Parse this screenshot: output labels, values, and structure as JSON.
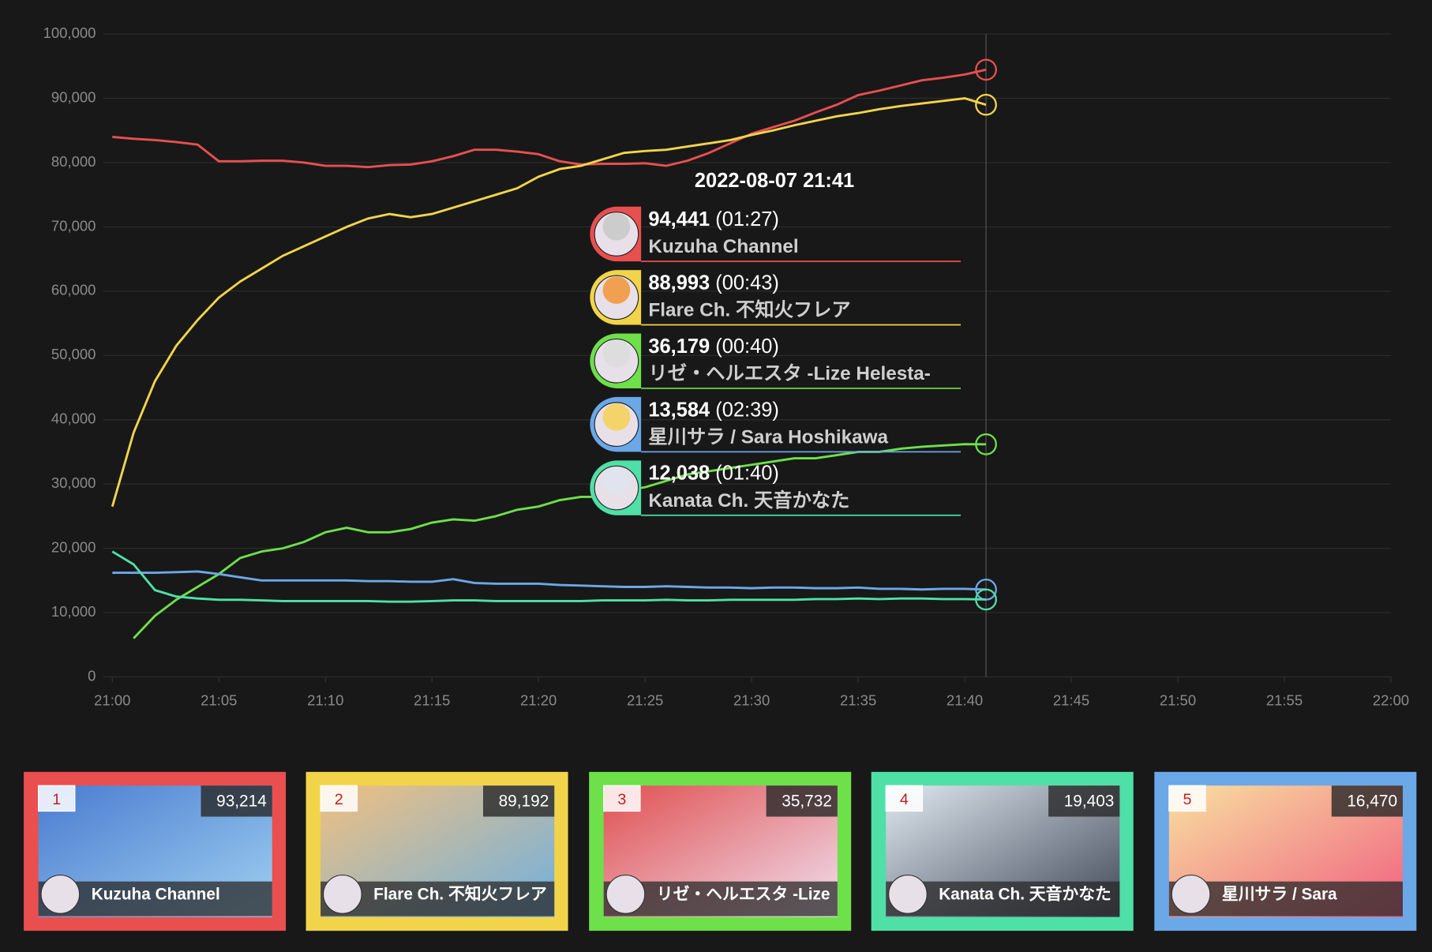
{
  "chart_data": {
    "type": "line",
    "x": [
      "21:00",
      "21:01",
      "21:02",
      "21:03",
      "21:04",
      "21:05",
      "21:06",
      "21:07",
      "21:08",
      "21:09",
      "21:10",
      "21:11",
      "21:12",
      "21:13",
      "21:14",
      "21:15",
      "21:16",
      "21:17",
      "21:18",
      "21:19",
      "21:20",
      "21:21",
      "21:22",
      "21:23",
      "21:24",
      "21:25",
      "21:26",
      "21:27",
      "21:28",
      "21:29",
      "21:30",
      "21:31",
      "21:32",
      "21:33",
      "21:34",
      "21:35",
      "21:36",
      "21:37",
      "21:38",
      "21:39",
      "21:40",
      "21:41"
    ],
    "xlim": [
      "21:00",
      "22:00"
    ],
    "xticks": [
      "21:00",
      "21:05",
      "21:10",
      "21:15",
      "21:20",
      "21:25",
      "21:30",
      "21:35",
      "21:40",
      "21:45",
      "21:50",
      "21:55",
      "22:00"
    ],
    "ylim": [
      0,
      100000
    ],
    "yticks": [
      0,
      {
        "value": 10000,
        "label": "10,000"
      },
      {
        "value": 20000,
        "label": "20,000"
      },
      {
        "value": 30000,
        "label": "30,000"
      },
      {
        "value": 40000,
        "label": "40,000"
      },
      {
        "value": 50000,
        "label": "50,000"
      },
      {
        "value": 60000,
        "label": "60,000"
      },
      {
        "value": 70000,
        "label": "70,000"
      },
      {
        "value": 80000,
        "label": "80,000"
      },
      {
        "value": 90000,
        "label": "90,000"
      },
      {
        "value": 100000,
        "label": "100,000"
      }
    ],
    "grid": true,
    "series": [
      {
        "name": "Kuzuha Channel",
        "color": "#e94f4f",
        "values": [
          84000,
          83700,
          83500,
          83200,
          82800,
          80200,
          80200,
          80300,
          80300,
          80000,
          79500,
          79500,
          79300,
          79600,
          79700,
          80200,
          81000,
          82000,
          82000,
          81700,
          81300,
          80200,
          79700,
          79800,
          79800,
          79900,
          79500,
          80300,
          81500,
          83000,
          84500,
          85500,
          86500,
          87800,
          89000,
          90500,
          91200,
          92000,
          92800,
          93200,
          93700,
          94441
        ]
      },
      {
        "name": "Flare Ch. 不知火フレア",
        "color": "#f2d44a",
        "values": [
          26500,
          38000,
          46000,
          51500,
          55500,
          59000,
          61500,
          63500,
          65500,
          67000,
          68500,
          70000,
          71300,
          72000,
          71500,
          72000,
          73000,
          74000,
          75000,
          76000,
          77800,
          79000,
          79500,
          80500,
          81500,
          81800,
          82000,
          82500,
          83000,
          83500,
          84300,
          85000,
          85800,
          86500,
          87200,
          87700,
          88300,
          88800,
          89200,
          89600,
          90000,
          88993
        ]
      },
      {
        "name": "リゼ・ヘルエスタ -Lize Helesta-",
        "color": "#6de04a",
        "values": [
          null,
          6000,
          9500,
          12000,
          14000,
          16000,
          18500,
          19500,
          20000,
          21000,
          22500,
          23200,
          22500,
          22500,
          23000,
          24000,
          24500,
          24300,
          25000,
          26000,
          26500,
          27500,
          28000,
          28000,
          29000,
          29500,
          30500,
          31500,
          32000,
          32500,
          33000,
          33500,
          34000,
          34000,
          34500,
          35000,
          35000,
          35500,
          35800,
          36000,
          36200,
          36179
        ]
      },
      {
        "name": "星川サラ / Sara Hoshikawa",
        "color": "#6aa8e8",
        "values": [
          16200,
          16200,
          16200,
          16300,
          16400,
          16000,
          15500,
          15000,
          15000,
          15000,
          15000,
          15000,
          14900,
          14900,
          14800,
          14800,
          15200,
          14600,
          14500,
          14500,
          14500,
          14300,
          14200,
          14100,
          14000,
          14000,
          14100,
          14000,
          13900,
          13900,
          13800,
          13900,
          13900,
          13800,
          13800,
          13900,
          13700,
          13700,
          13600,
          13700,
          13700,
          13584
        ]
      },
      {
        "name": "Kanata Ch. 天音かなた",
        "color": "#4fe0a8",
        "values": [
          19500,
          17500,
          13500,
          12500,
          12200,
          12000,
          12000,
          11900,
          11800,
          11800,
          11800,
          11800,
          11800,
          11700,
          11700,
          11800,
          11900,
          11900,
          11800,
          11800,
          11800,
          11800,
          11800,
          11900,
          11900,
          11900,
          12000,
          11900,
          11900,
          12000,
          12000,
          12000,
          12000,
          12100,
          12100,
          12200,
          12100,
          12200,
          12200,
          12100,
          12100,
          12038
        ]
      }
    ]
  },
  "tooltip": {
    "title": "2022-08-07 21:41",
    "items": [
      {
        "value": "94,441",
        "duration": "(01:27)"
      },
      {
        "value": "88,993",
        "duration": "(00:43)"
      },
      {
        "value": "36,179",
        "duration": "(00:40)"
      },
      {
        "value": "13,584",
        "duration": "(02:39)"
      },
      {
        "value": "12,038",
        "duration": "(01:40)"
      }
    ]
  },
  "cards": [
    {
      "rank": "1",
      "viewers": "93,214",
      "name": "Kuzuha Channel"
    },
    {
      "rank": "2",
      "viewers": "89,192",
      "name": "Flare Ch. 不知火フレア"
    },
    {
      "rank": "3",
      "viewers": "35,732",
      "name": "リゼ・ヘルエスタ -Lize"
    },
    {
      "rank": "4",
      "viewers": "19,403",
      "name": "Kanata Ch. 天音かなた"
    },
    {
      "rank": "5",
      "viewers": "16,470",
      "name": "星川サラ / Sara"
    }
  ]
}
